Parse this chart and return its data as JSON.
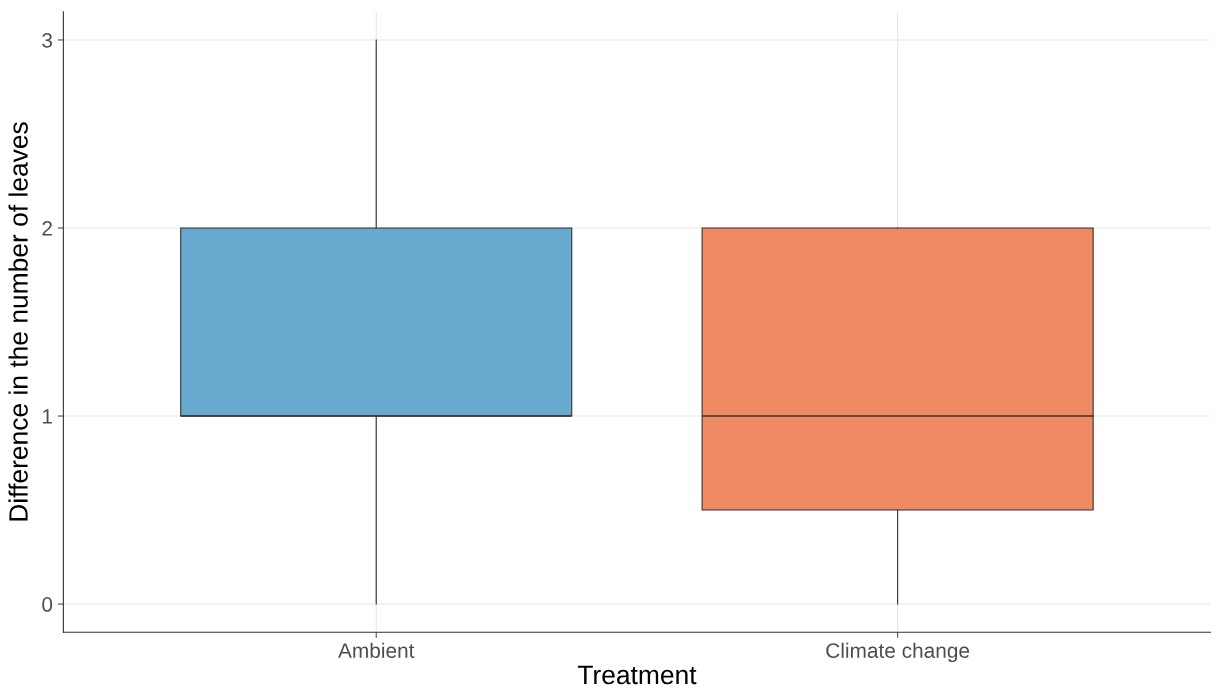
{
  "chart_data": {
    "type": "box",
    "xlabel": "Treatment",
    "ylabel": "Difference in the number of leaves",
    "categories": [
      "Ambient",
      "Climate change"
    ],
    "boxes": [
      {
        "low": 0,
        "q1": 1,
        "median": 1,
        "q3": 2,
        "high": 3
      },
      {
        "low": 0,
        "q1": 0.5,
        "median": 1,
        "q3": 2,
        "high": 2
      }
    ],
    "colors": [
      "#67a9cf",
      "#ef8a62"
    ],
    "ylim": [
      -0.15,
      3.15
    ],
    "yticks": [
      0,
      1,
      2,
      3
    ],
    "grid": true
  }
}
